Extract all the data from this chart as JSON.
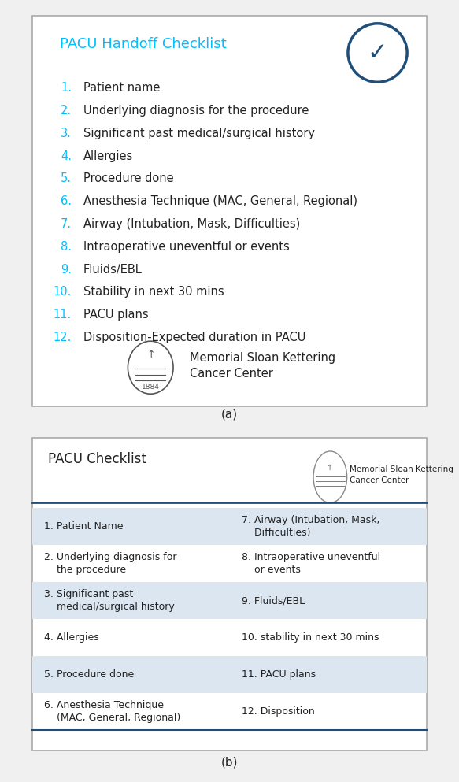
{
  "fig_width": 5.83,
  "fig_height": 9.93,
  "bg_color": "#f0f0f0",
  "panel_a": {
    "title": "PACU Handoff Checklist",
    "title_color": "#00BFFF",
    "items": [
      "Patient name",
      "Underlying diagnosis for the procedure",
      "Significant past medical/surgical history",
      "Allergies",
      "Procedure done",
      "Anesthesia Technique (MAC, General, Regional)",
      "Airway (Intubation, Mask, Difficulties)",
      "Intraoperative uneventful or events",
      "Fluids/EBL",
      "Stability in next 30 mins",
      "PACU plans",
      "Disposition-Expected duration in PACU"
    ],
    "number_color": "#00BFFF",
    "text_color": "#222222",
    "msk_text": "Memorial Sloan Kettering\nCancer Center",
    "msk_year": "1884"
  },
  "panel_b": {
    "title": "PACU Checklist",
    "title_color": "#222222",
    "col1": [
      "1. Patient Name",
      "2. Underlying diagnosis for\n    the procedure",
      "3. Significant past\n    medical/surgical history",
      "4. Allergies",
      "5. Procedure done",
      "6. Anesthesia Technique\n    (MAC, General, Regional)"
    ],
    "col2": [
      "7. Airway (Intubation, Mask,\n    Difficulties)",
      "8. Intraoperative uneventful\n    or events",
      "9. Fluids/EBL",
      "10. stability in next 30 mins",
      "11. PACU plans",
      "12. Disposition"
    ],
    "shaded_rows": [
      0,
      2,
      4
    ],
    "shade_color": "#dce6f1",
    "text_color": "#222222",
    "msk_text": "Memorial Sloan Kettering\nCancer Center",
    "header_line_color": "#1F4E79",
    "bottom_line_color": "#1F4E79"
  },
  "caption_a": "(a)",
  "caption_b": "(b)"
}
